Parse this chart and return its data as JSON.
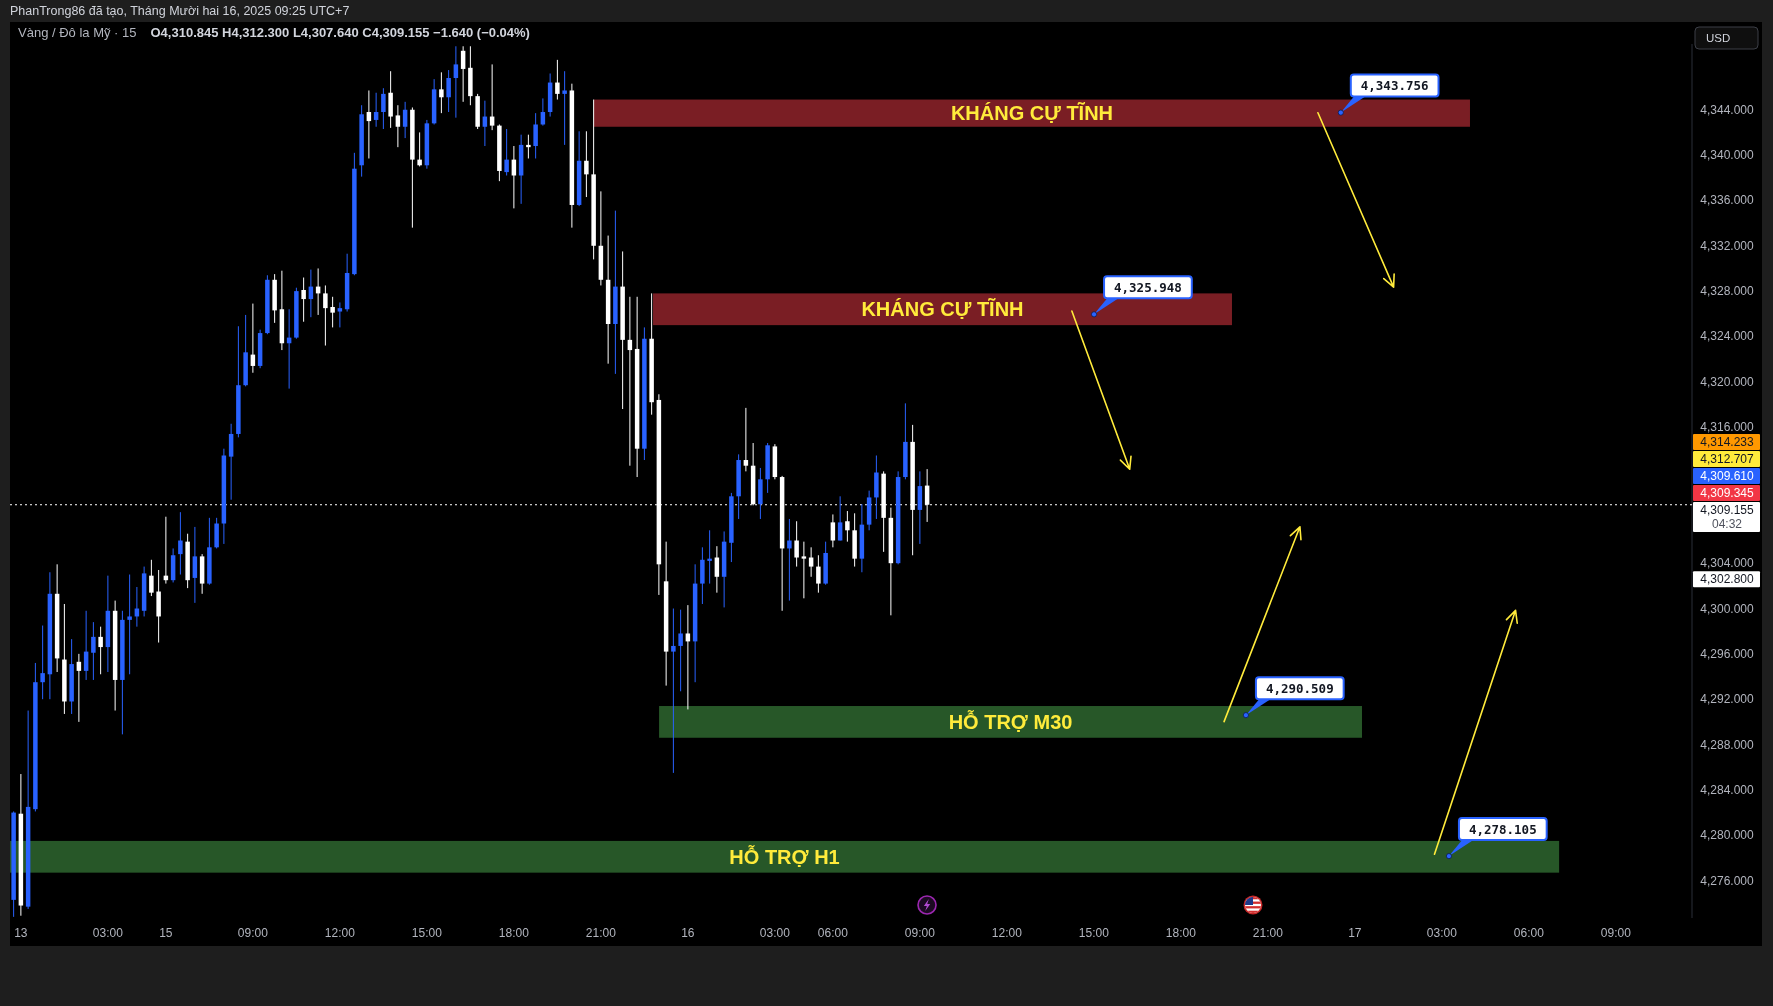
{
  "chart_data": {
    "type": "candlestick",
    "title": "Vàng / Đô la Mỹ · 15",
    "subtitle": "O4,310.845 H4,312.300 L4,307.640 C4,309.155 −1.640 (−0.04%)",
    "ylabel": "USD",
    "categories": [
      null,
      "13",
      null,
      null,
      null,
      null,
      null,
      null,
      null,
      null,
      null,
      null,
      null,
      "03:00",
      null,
      null,
      null,
      null,
      null,
      null,
      null,
      "15",
      null,
      null,
      null,
      null,
      null,
      null,
      null,
      null,
      null,
      null,
      null,
      "09:00",
      null,
      null,
      null,
      null,
      null,
      null,
      null,
      null,
      null,
      null,
      null,
      "12:00",
      null,
      null,
      null,
      null,
      null,
      null,
      null,
      null,
      null,
      null,
      null,
      "15:00",
      null,
      null,
      null,
      null,
      null,
      null,
      null,
      null,
      null,
      null,
      null,
      "18:00",
      null,
      null,
      null,
      null,
      null,
      null,
      null,
      null,
      null,
      null,
      null,
      "21:00",
      null,
      null,
      null,
      null,
      null,
      null,
      null,
      null,
      null,
      null,
      null,
      "16",
      null,
      null,
      null,
      null,
      null,
      null,
      null,
      null,
      null,
      null,
      null,
      "03:00",
      null,
      null,
      null,
      null,
      null,
      null,
      null,
      "06:00",
      null,
      null,
      null,
      null,
      null,
      null,
      null,
      null,
      null,
      null,
      null,
      "09:00",
      null,
      null,
      null,
      null,
      null,
      null,
      null,
      null,
      null,
      null,
      null,
      "12:00",
      null,
      null,
      null,
      null,
      null,
      null,
      null,
      null,
      null,
      null,
      null,
      "15:00",
      null,
      null,
      null,
      null,
      null,
      null,
      null,
      null,
      null,
      null,
      null,
      "18:00",
      null,
      null,
      null,
      null,
      null,
      null,
      null,
      null,
      null,
      null,
      null,
      "21:00",
      null,
      null,
      null,
      null,
      null,
      null,
      null,
      null,
      null,
      null,
      null,
      "17",
      null,
      null,
      null,
      null,
      null,
      null,
      null,
      null,
      null,
      null,
      null,
      "03:00",
      null,
      null,
      null,
      null,
      null,
      null,
      null,
      null,
      null,
      null,
      null,
      "06:00",
      null,
      null,
      null,
      null,
      null,
      null,
      null,
      null,
      null,
      null,
      null,
      "09:00",
      null,
      null,
      null,
      null,
      null,
      null,
      null,
      null,
      null,
      null
    ],
    "ohlc": [
      [
        4274.3,
        4282.1,
        4272.8,
        4282.0
      ],
      [
        4281.9,
        4285.4,
        4272.9,
        4273.8
      ],
      [
        4273.7,
        4291.0,
        4273.5,
        4282.5
      ],
      [
        4282.3,
        4295.2,
        4282.1,
        4293.5
      ],
      [
        4293.5,
        4298.5,
        4292.0,
        4294.3
      ],
      [
        4294.2,
        4303.2,
        4292.0,
        4301.3
      ],
      [
        4301.3,
        4303.9,
        4294.4,
        4295.6
      ],
      [
        4295.5,
        4300.4,
        4290.7,
        4291.8
      ],
      [
        4291.8,
        4297.3,
        4290.7,
        4295.1
      ],
      [
        4295.3,
        4296.0,
        4290.0,
        4294.5
      ],
      [
        4294.5,
        4299.8,
        4293.7,
        4296.2
      ],
      [
        4296.1,
        4298.8,
        4293.7,
        4297.5
      ],
      [
        4297.5,
        4298.4,
        4294.2,
        4296.6
      ],
      [
        4296.6,
        4302.9,
        4294.4,
        4299.8
      ],
      [
        4299.8,
        4300.7,
        4291.0,
        4293.7
      ],
      [
        4293.7,
        4299.8,
        4288.9,
        4299.0
      ],
      [
        4299.0,
        4303.0,
        4294.2,
        4299.3
      ],
      [
        4299.3,
        4301.9,
        4298.4,
        4300.0
      ],
      [
        4299.8,
        4303.7,
        4299.3,
        4303.1
      ],
      [
        4302.9,
        4304.3,
        4301.1,
        4301.4
      ],
      [
        4301.5,
        4303.4,
        4297.0,
        4299.3
      ],
      [
        4302.9,
        4308.1,
        4302.2,
        4302.5
      ],
      [
        4302.5,
        4305.3,
        4302.3,
        4304.7
      ],
      [
        4304.8,
        4308.5,
        4303.0,
        4306.0
      ],
      [
        4305.9,
        4306.6,
        4301.8,
        4302.5
      ],
      [
        4302.7,
        4307.2,
        4300.5,
        4304.6
      ],
      [
        4304.6,
        4304.8,
        4301.3,
        4302.2
      ],
      [
        4302.2,
        4308.0,
        4302.1,
        4305.4
      ],
      [
        4305.4,
        4308.0,
        4305.3,
        4307.5
      ],
      [
        4307.5,
        4314.1,
        4305.7,
        4313.5
      ],
      [
        4313.4,
        4316.3,
        4309.6,
        4315.4
      ],
      [
        4315.4,
        4324.9,
        4315.1,
        4319.7
      ],
      [
        4319.7,
        4325.9,
        4319.6,
        4322.6
      ],
      [
        4322.4,
        4326.9,
        4320.8,
        4321.4
      ],
      [
        4321.4,
        4324.6,
        4321.2,
        4324.3
      ],
      [
        4324.3,
        4329.4,
        4324.2,
        4329.0
      ],
      [
        4329.0,
        4329.5,
        4325.2,
        4326.3
      ],
      [
        4326.4,
        4329.8,
        4322.8,
        4323.4
      ],
      [
        4323.4,
        4326.4,
        4319.4,
        4323.9
      ],
      [
        4323.9,
        4328.3,
        4323.8,
        4328.0
      ],
      [
        4328.1,
        4329.2,
        4325.3,
        4327.3
      ],
      [
        4327.3,
        4329.9,
        4325.7,
        4328.4
      ],
      [
        4328.4,
        4330.0,
        4325.9,
        4327.8
      ],
      [
        4327.8,
        4328.5,
        4323.2,
        4326.5
      ],
      [
        4326.6,
        4327.5,
        4324.8,
        4326.1
      ],
      [
        4326.2,
        4327.0,
        4324.8,
        4326.5
      ],
      [
        4326.4,
        4331.3,
        4326.2,
        4329.6
      ],
      [
        4329.5,
        4340.2,
        4329.4,
        4338.8
      ],
      [
        4339.1,
        4344.4,
        4338.1,
        4343.6
      ],
      [
        4343.8,
        4345.7,
        4339.7,
        4343.0
      ],
      [
        4343.1,
        4345.5,
        4342.5,
        4343.8
      ],
      [
        4343.8,
        4345.9,
        4342.3,
        4345.4
      ],
      [
        4345.5,
        4347.4,
        4342.4,
        4343.4
      ],
      [
        4343.5,
        4344.4,
        4340.7,
        4342.5
      ],
      [
        4342.5,
        4344.7,
        4341.5,
        4344.0
      ],
      [
        4344.0,
        4344.2,
        4333.6,
        4339.6
      ],
      [
        4339.6,
        4342.0,
        4339.0,
        4339.1
      ],
      [
        4339.1,
        4343.1,
        4338.8,
        4342.8
      ],
      [
        4342.8,
        4346.7,
        4342.7,
        4345.8
      ],
      [
        4345.8,
        4347.3,
        4343.7,
        4345.1
      ],
      [
        4345.1,
        4347.5,
        4343.8,
        4346.8
      ],
      [
        4346.8,
        4349.6,
        4343.3,
        4348.0
      ],
      [
        4349.2,
        4349.6,
        4344.7,
        4347.6
      ],
      [
        4347.7,
        4349.6,
        4344.4,
        4345.2
      ],
      [
        4345.2,
        4345.4,
        4342.3,
        4342.5
      ],
      [
        4342.5,
        4344.8,
        4340.8,
        4343.4
      ],
      [
        4343.4,
        4348.0,
        4342.2,
        4342.6
      ],
      [
        4342.6,
        4342.7,
        4337.7,
        4338.6
      ],
      [
        4338.5,
        4342.3,
        4338.2,
        4339.6
      ],
      [
        4339.6,
        4340.8,
        4335.3,
        4338.2
      ],
      [
        4338.2,
        4341.8,
        4335.7,
        4340.9
      ],
      [
        4340.9,
        4341.8,
        4339.7,
        4340.7
      ],
      [
        4340.8,
        4343.7,
        4339.7,
        4342.7
      ],
      [
        4342.7,
        4345.0,
        4342.6,
        4343.8
      ],
      [
        4343.8,
        4347.2,
        4343.4,
        4346.4
      ],
      [
        4346.4,
        4348.4,
        4344.9,
        4345.4
      ],
      [
        4345.4,
        4347.4,
        4340.9,
        4345.7
      ],
      [
        4345.7,
        4346.3,
        4333.6,
        4335.6
      ],
      [
        4335.6,
        4342.1,
        4335.5,
        4339.5
      ],
      [
        4339.5,
        4342.1,
        4336.3,
        4338.3
      ],
      [
        4338.3,
        4344.9,
        4330.8,
        4332.0
      ],
      [
        4332.0,
        4336.8,
        4328.5,
        4329.0
      ],
      [
        4329.0,
        4332.9,
        4321.6,
        4325.1
      ],
      [
        4325.1,
        4335.1,
        4320.7,
        4328.4
      ],
      [
        4328.4,
        4331.5,
        4317.6,
        4323.7
      ],
      [
        4323.7,
        4327.5,
        4312.6,
        4322.8
      ],
      [
        4322.9,
        4327.5,
        4311.6,
        4314.1
      ],
      [
        4314.1,
        4324.8,
        4313.1,
        4323.8
      ],
      [
        4323.8,
        4327.8,
        4317.1,
        4318.2
      ],
      [
        4318.4,
        4318.9,
        4301.2,
        4303.9
      ],
      [
        4302.4,
        4305.9,
        4293.2,
        4296.2
      ],
      [
        4296.2,
        4300.0,
        4285.5,
        4296.7
      ],
      [
        4296.7,
        4299.9,
        4292.7,
        4297.8
      ],
      [
        4297.8,
        4300.3,
        4291.1,
        4297.1
      ],
      [
        4297.1,
        4303.9,
        4293.5,
        4302.2
      ],
      [
        4302.2,
        4305.4,
        4300.4,
        4304.3
      ],
      [
        4304.2,
        4306.9,
        4302.2,
        4304.4
      ],
      [
        4304.5,
        4305.5,
        4301.4,
        4302.8
      ],
      [
        4302.8,
        4306.8,
        4300.1,
        4305.9
      ],
      [
        4305.8,
        4310.2,
        4304.1,
        4309.9
      ],
      [
        4309.9,
        4313.6,
        4307.9,
        4313.1
      ],
      [
        4313.1,
        4317.7,
        4312.1,
        4312.6
      ],
      [
        4312.6,
        4314.6,
        4309.1,
        4309.2
      ],
      [
        4309.2,
        4312.4,
        4307.9,
        4311.4
      ],
      [
        4311.4,
        4314.6,
        4310.2,
        4314.4
      ],
      [
        4314.3,
        4314.5,
        4311.4,
        4311.6
      ],
      [
        4311.6,
        4311.7,
        4299.8,
        4305.3
      ],
      [
        4305.3,
        4307.9,
        4300.7,
        4306.0
      ],
      [
        4306.0,
        4307.7,
        4303.7,
        4304.5
      ],
      [
        4304.6,
        4305.9,
        4300.9,
        4304.4
      ],
      [
        4304.5,
        4305.4,
        4302.8,
        4303.7
      ],
      [
        4303.7,
        4304.7,
        4301.4,
        4302.2
      ],
      [
        4302.2,
        4305.9,
        4302.1,
        4304.9
      ],
      [
        4307.6,
        4308.3,
        4305.4,
        4306.0
      ],
      [
        4306.0,
        4309.9,
        4306.0,
        4307.6
      ],
      [
        4307.7,
        4308.6,
        4305.9,
        4306.9
      ],
      [
        4306.9,
        4308.4,
        4303.7,
        4304.4
      ],
      [
        4304.4,
        4309.2,
        4303.2,
        4307.4
      ],
      [
        4307.4,
        4310.4,
        4306.9,
        4309.8
      ],
      [
        4309.8,
        4313.5,
        4307.9,
        4312.0
      ],
      [
        4311.9,
        4312.1,
        4305.0,
        4308.0
      ],
      [
        4308.0,
        4308.9,
        4299.4,
        4304.0
      ],
      [
        4304.0,
        4312.1,
        4303.9,
        4311.6
      ],
      [
        4311.6,
        4318.1,
        4311.4,
        4314.7
      ],
      [
        4314.7,
        4316.2,
        4304.7,
        4308.7
      ],
      [
        4308.7,
        4312.1,
        4305.7,
        4310.8
      ],
      [
        4310.845,
        4312.3,
        4307.64,
        4309.155
      ],
      null,
      null,
      null,
      null,
      null,
      null,
      null,
      null,
      null,
      null,
      null,
      null,
      null,
      null,
      null,
      null,
      null,
      null,
      null,
      null,
      null,
      null,
      null,
      null,
      null,
      null,
      null,
      null,
      null,
      null,
      null,
      null,
      null,
      null,
      null,
      null,
      null,
      null,
      null,
      null,
      null,
      null,
      null,
      null,
      null,
      null,
      null,
      null,
      null,
      null,
      null,
      null,
      null,
      null,
      null,
      null,
      null,
      null,
      null,
      null,
      null,
      null,
      null,
      null,
      null,
      null,
      null,
      null,
      null,
      null,
      null,
      null,
      null,
      null,
      null,
      null,
      null,
      null,
      null,
      null,
      null,
      null,
      null,
      null,
      null,
      null,
      null,
      null,
      null,
      null,
      null,
      null,
      null,
      null,
      null,
      null,
      null,
      null,
      null,
      null,
      null,
      null,
      null,
      null,
      null
    ],
    "colors": [
      "#2962ff",
      "#ffffff",
      "#2962ff",
      "#2962ff",
      "#2962ff",
      "#2962ff",
      "#ffffff",
      "#ffffff",
      "#2962ff",
      "#ffffff",
      "#2962ff",
      "#2962ff",
      "#ffffff",
      "#2962ff",
      "#ffffff",
      "#2962ff",
      "#2962ff",
      "#2962ff",
      "#2962ff",
      "#ffffff",
      "#ffffff",
      "#ffffff",
      "#2962ff",
      "#2962ff",
      "#ffffff",
      "#2962ff",
      "#ffffff",
      "#2962ff",
      "#2962ff",
      "#2962ff",
      "#2962ff",
      "#2962ff",
      "#2962ff",
      "#ffffff",
      "#2962ff",
      "#2962ff",
      "#ffffff",
      "#ffffff",
      "#2962ff",
      "#2962ff",
      "#ffffff",
      "#2962ff",
      "#ffffff",
      "#ffffff",
      "#ffffff",
      "#2962ff",
      "#2962ff",
      "#2962ff",
      "#2962ff",
      "#ffffff",
      "#2962ff",
      "#2962ff",
      "#ffffff",
      "#ffffff",
      "#2962ff",
      "#ffffff",
      "#ffffff",
      "#2962ff",
      "#2962ff",
      "#ffffff",
      "#2962ff",
      "#2962ff",
      "#ffffff",
      "#ffffff",
      "#ffffff",
      "#2962ff",
      "#ffffff",
      "#ffffff",
      "#2962ff",
      "#ffffff",
      "#2962ff",
      "#ffffff",
      "#2962ff",
      "#2962ff",
      "#2962ff",
      "#ffffff",
      "#2962ff",
      "#ffffff",
      "#2962ff",
      "#ffffff",
      "#ffffff",
      "#ffffff",
      "#ffffff",
      "#2962ff",
      "#ffffff",
      "#ffffff",
      "#ffffff",
      "#2962ff",
      "#ffffff",
      "#ffffff",
      "#ffffff",
      "#2962ff",
      "#2962ff",
      "#ffffff",
      "#2962ff",
      "#2962ff",
      "#2962ff",
      "#ffffff",
      "#2962ff",
      "#2962ff",
      "#2962ff",
      "#ffffff",
      "#ffffff",
      "#2962ff",
      "#2962ff",
      "#ffffff",
      "#ffffff",
      "#2962ff",
      "#ffffff",
      "#ffffff",
      "#ffffff",
      "#ffffff",
      "#2962ff",
      "#ffffff",
      "#2962ff",
      "#ffffff",
      "#ffffff",
      "#2962ff",
      "#2962ff",
      "#2962ff",
      "#ffffff",
      "#ffffff",
      "#2962ff",
      "#2962ff",
      "#ffffff",
      "#2962ff",
      "#ffffff",
      null,
      null,
      null,
      null,
      null,
      null,
      null,
      null,
      null,
      null,
      null,
      null,
      null,
      null,
      null,
      null,
      null,
      null,
      null,
      null,
      null,
      null,
      null,
      null,
      null,
      null,
      null,
      null,
      null,
      null,
      null,
      null,
      null,
      null,
      null,
      null,
      null,
      null,
      null,
      null,
      null,
      null,
      null,
      null,
      null,
      null,
      null,
      null,
      null,
      null,
      null,
      null,
      null,
      null,
      null,
      null,
      null,
      null,
      null,
      null,
      null,
      null,
      null,
      null,
      null,
      null,
      null,
      null,
      null,
      null,
      null,
      null,
      null,
      null,
      null,
      null,
      null,
      null,
      null,
      null,
      null,
      null,
      null,
      null,
      null,
      null,
      null,
      null,
      null,
      null,
      null,
      null,
      null,
      null,
      null,
      null,
      null,
      null,
      null,
      null,
      null,
      null,
      null,
      null,
      null
    ],
    "ylim": [
      4272.7,
      4349.8
    ],
    "yticks": [
      {
        "value": 4276,
        "label": "4,276.000"
      },
      {
        "value": 4280,
        "label": "4,280.000"
      },
      {
        "value": 4284,
        "label": "4,284.000"
      },
      {
        "value": 4288,
        "label": "4,288.000"
      },
      {
        "value": 4292,
        "label": "4,292.000"
      },
      {
        "value": 4296,
        "label": "4,296.000"
      },
      {
        "value": 4300,
        "label": "4,300.000"
      },
      {
        "value": 4304,
        "label": "4,304.000"
      },
      {
        "value": 4316,
        "label": "4,316.000"
      },
      {
        "value": 4320,
        "label": "4,320.000"
      },
      {
        "value": 4324,
        "label": "4,324.000"
      },
      {
        "value": 4328,
        "label": "4,328.000"
      },
      {
        "value": 4332,
        "label": "4,332.000"
      },
      {
        "value": 4336,
        "label": "4,336.000"
      },
      {
        "value": 4340,
        "label": "4,340.000"
      },
      {
        "value": 4344,
        "label": "4,344.000"
      }
    ],
    "bands": [
      {
        "axis": "y",
        "from": 4342.5,
        "to": 4344.9,
        "label": "KHÁNG CỰ TĨNH",
        "color": "#7a1e24"
      },
      {
        "axis": "y",
        "from": 4325.0,
        "to": 4327.8,
        "label": "KHÁNG CỰ TĨNH",
        "color": "#7a1e24"
      },
      {
        "axis": "y",
        "from": 4288.6,
        "to": 4291.4,
        "label": "HỖ TRỢ M30",
        "color": "#275728"
      },
      {
        "axis": "y",
        "from": 4276.7,
        "to": 4279.5,
        "label": "HỖ TRỢ H1",
        "color": "#275728"
      }
    ],
    "ref_lines": [
      {
        "axis": "y",
        "value": 4309.155,
        "label": "4,309.155\n04:32",
        "color": "#ffffff",
        "line_style": "dotted"
      }
    ],
    "annotations": [
      "PhanTrong86 đã tạo, Tháng Mười hai 16, 2025 09:25 UTC+7",
      "4,343.756",
      "4,325.948",
      "4,290.509",
      "4,278.105",
      "4,314.233",
      "4,312.707",
      "4,309.610",
      "4,309.345",
      "4,302.800"
    ]
  }
}
